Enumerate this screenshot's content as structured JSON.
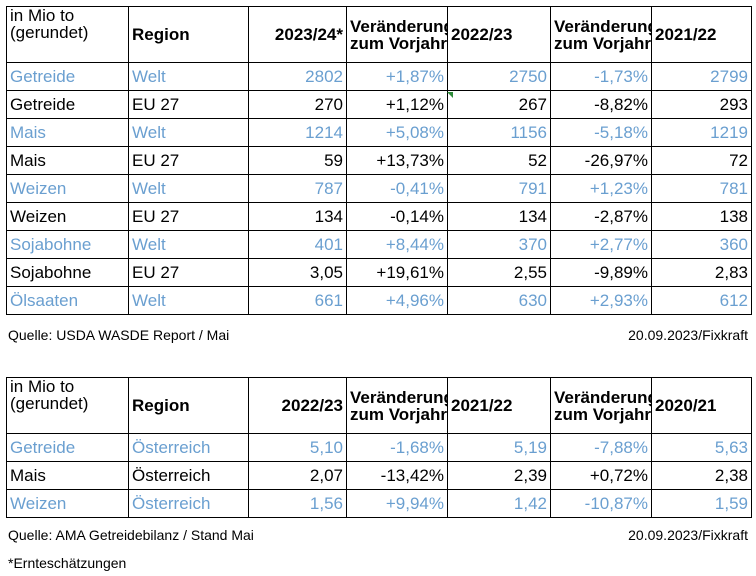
{
  "table1": {
    "header": {
      "unit_line1": "in Mio to",
      "unit_line2": "(gerundet)",
      "region": "Region",
      "year1": "2023/24*",
      "change_line1": "Veränderung",
      "change_line2": "zum Vorjahr",
      "year2": "2022/23",
      "year3": "2021/22"
    },
    "rows": [
      {
        "product": "Getreide",
        "region": "Welt",
        "v1": "2802",
        "c1": "+1,87%",
        "v2": "2750",
        "c2": "-1,73%",
        "v3": "2799",
        "highlight": true
      },
      {
        "product": "Getreide",
        "region": "EU 27",
        "v1": "270",
        "c1": "+1,12%",
        "v2": "267",
        "c2": "-8,82%",
        "v3": "293",
        "highlight": false
      },
      {
        "product": "Mais",
        "region": "Welt",
        "v1": "1214",
        "c1": "+5,08%",
        "v2": "1156",
        "c2": "-5,18%",
        "v3": "1219",
        "highlight": true
      },
      {
        "product": "Mais",
        "region": "EU 27",
        "v1": "59",
        "c1": "+13,73%",
        "v2": "52",
        "c2": "-26,97%",
        "v3": "72",
        "highlight": false
      },
      {
        "product": "Weizen",
        "region": "Welt",
        "v1": "787",
        "c1": "-0,41%",
        "v2": "791",
        "c2": "+1,23%",
        "v3": "781",
        "highlight": true
      },
      {
        "product": "Weizen",
        "region": "EU 27",
        "v1": "134",
        "c1": "-0,14%",
        "v2": "134",
        "c2": "-2,87%",
        "v3": "138",
        "highlight": false
      },
      {
        "product": "Sojabohne",
        "region": "Welt",
        "v1": "401",
        "c1": "+8,44%",
        "v2": "370",
        "c2": "+2,77%",
        "v3": "360",
        "highlight": true
      },
      {
        "product": "Sojabohne",
        "region": "EU 27",
        "v1": "3,05",
        "c1": "+19,61%",
        "v2": "2,55",
        "c2": "-9,89%",
        "v3": "2,83",
        "highlight": false
      },
      {
        "product": "Ölsaaten",
        "region": "Welt",
        "v1": "661",
        "c1": "+4,96%",
        "v2": "630",
        "c2": "+2,93%",
        "v3": "612",
        "highlight": true
      }
    ],
    "source": "Quelle: USDA WASDE Report / Mai",
    "stamp": "20.09.2023/Fixkraft"
  },
  "table2": {
    "header": {
      "unit_line1": "in Mio to",
      "unit_line2": "(gerundet)",
      "region": "Region",
      "year1": "2022/23",
      "change_line1": "Veränderung",
      "change_line2": "zum Vorjahr",
      "year2": "2021/22",
      "year3": "2020/21"
    },
    "rows": [
      {
        "product": "Getreide",
        "region": "Österreich",
        "v1": "5,10",
        "c1": "-1,68%",
        "v2": "5,19",
        "c2": "-7,88%",
        "v3": "5,63",
        "highlight": true
      },
      {
        "product": "Mais",
        "region": "Österreich",
        "v1": "2,07",
        "c1": "-13,42%",
        "v2": "2,39",
        "c2": "+0,72%",
        "v3": "2,38",
        "highlight": false
      },
      {
        "product": "Weizen",
        "region": "Österreich",
        "v1": "1,56",
        "c1": "+9,94%",
        "v2": "1,42",
        "c2": "-10,87%",
        "v3": "1,59",
        "highlight": true
      }
    ],
    "source": "Quelle: AMA Getreidebilanz / Stand Mai",
    "stamp": "20.09.2023/Fixkraft"
  },
  "footnote": "*Ernteschätzungen",
  "colors": {
    "highlight_text": "#6a9fd0",
    "border": "#000000",
    "comment_marker": "#2e8b3a"
  }
}
